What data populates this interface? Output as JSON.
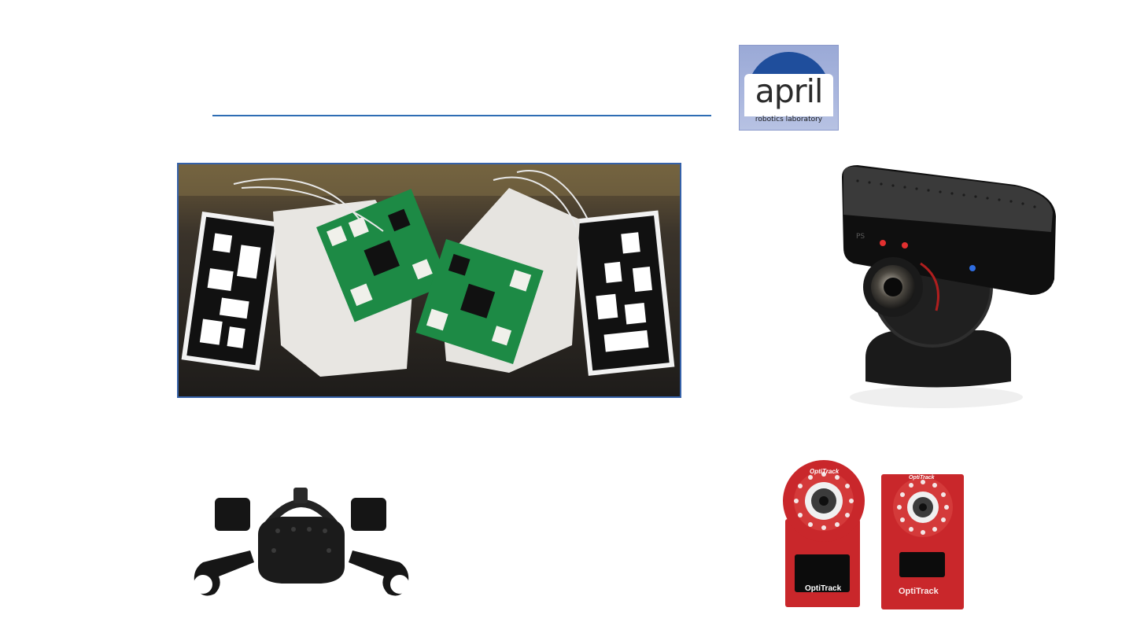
{
  "slide": {
    "title": ""
  },
  "logo": {
    "word": "april",
    "subtitle": "robotics laboratory",
    "colors": {
      "arc": "#1f4e9c",
      "background": "#aab7de"
    }
  },
  "images": {
    "robots_photo": {
      "icon": "robot-modules-with-apriltags-photo"
    },
    "ps_eye": {
      "icon": "playstation-eye-camera-photo"
    },
    "vive": {
      "icon": "vr-headset-controllers-photo"
    },
    "optitrack": {
      "icon": "optitrack-cameras-photo",
      "brand_left": "OptiTrack",
      "brand_right": "OptiTrack",
      "ring_left": "OptiTrack",
      "ring_right": "OptiTrack"
    }
  },
  "colors": {
    "rule": "#2e6db4",
    "photo_border": "#3561a8",
    "optitrack_red": "#c9272b"
  }
}
